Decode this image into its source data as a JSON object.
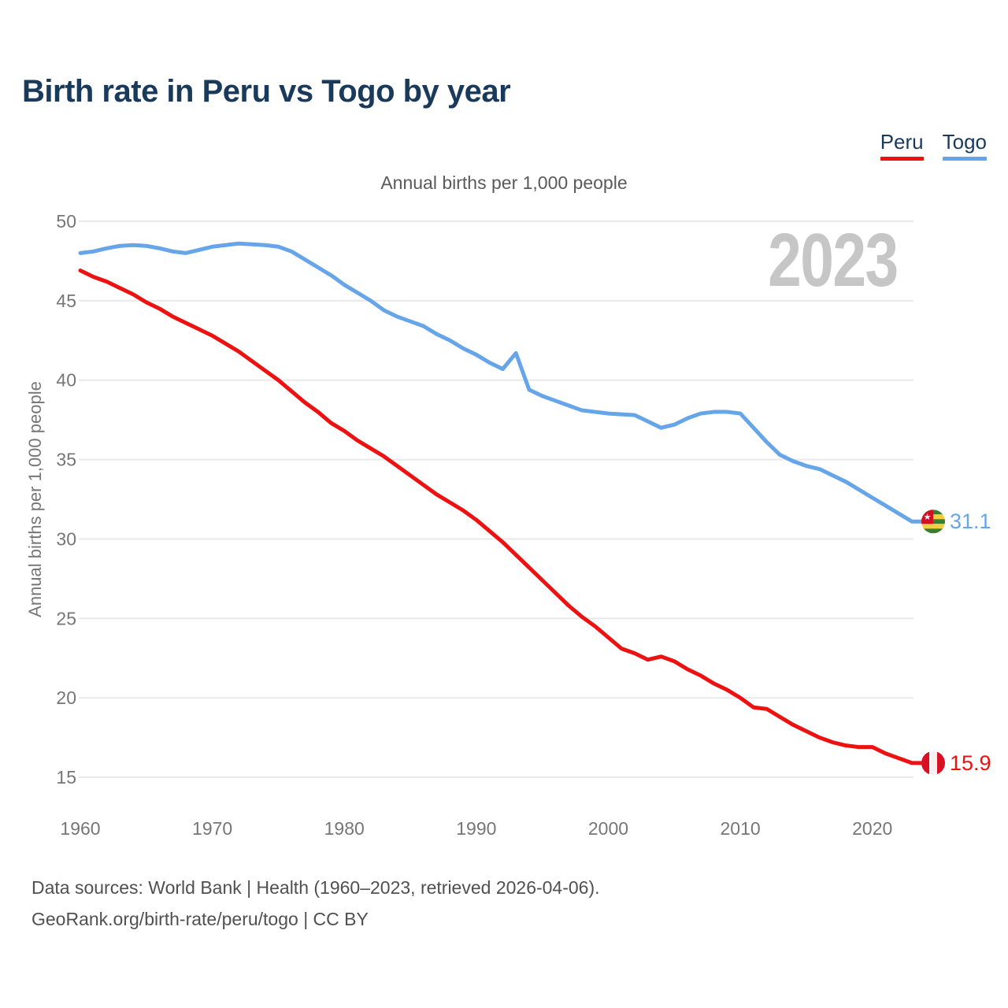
{
  "title": "Birth rate in Peru vs Togo by year",
  "subtitle": "Annual births per 1,000 people",
  "watermark": "2023",
  "legend": {
    "items": [
      {
        "label": "Peru",
        "color": "#ed1212"
      },
      {
        "label": "Togo",
        "color": "#66a5e8"
      }
    ]
  },
  "y_axis": {
    "title": "Annual births per 1,000 people",
    "ticks": [
      15,
      20,
      25,
      30,
      35,
      40,
      45,
      50
    ]
  },
  "x_axis": {
    "ticks": [
      1960,
      1970,
      1980,
      1990,
      2000,
      2010,
      2020
    ]
  },
  "end_labels": {
    "togo": {
      "value": "31.1"
    },
    "peru": {
      "value": "15.9"
    }
  },
  "footer": {
    "line1": "Data sources: World Bank | Health (1960–2023, retrieved 2026-04-06).",
    "line2": "GeoRank.org/birth-rate/peru/togo | CC BY"
  },
  "colors": {
    "title_text": "#1a3a5c",
    "axis_text": "#767676",
    "grid": "#e9e9e9",
    "peru_line": "#ed1212",
    "togo_line": "#66a5e8",
    "watermark": "#c6c6c6",
    "footer_text": "#505050",
    "flag_togo_green": "#3a7d2d",
    "flag_togo_yellow": "#f2ce45",
    "flag_togo_red": "#d21024",
    "flag_star": "#ffffff",
    "flag_peru_red": "#d91023",
    "flag_peru_white": "#f5f1f1"
  },
  "icons": {
    "togo_flag_star": "★"
  },
  "chart_data": {
    "type": "line",
    "title": "Annual births per 1,000 people",
    "xlabel": "",
    "ylabel": "Annual births per 1,000 people",
    "xlim": [
      1960,
      2023
    ],
    "ylim": [
      15,
      50
    ],
    "grid": "horizontal",
    "legend_position": "top-right",
    "x": [
      1960,
      1961,
      1962,
      1963,
      1964,
      1965,
      1966,
      1967,
      1968,
      1969,
      1970,
      1971,
      1972,
      1973,
      1974,
      1975,
      1976,
      1977,
      1978,
      1979,
      1980,
      1981,
      1982,
      1983,
      1984,
      1985,
      1986,
      1987,
      1988,
      1989,
      1990,
      1991,
      1992,
      1993,
      1994,
      1995,
      1996,
      1997,
      1998,
      1999,
      2000,
      2001,
      2002,
      2003,
      2004,
      2005,
      2006,
      2007,
      2008,
      2009,
      2010,
      2011,
      2012,
      2013,
      2014,
      2015,
      2016,
      2017,
      2018,
      2019,
      2020,
      2021,
      2022,
      2023
    ],
    "series": [
      {
        "name": "Peru",
        "color": "#ed1212",
        "end_label": "15.9",
        "values": [
          46.9,
          46.5,
          46.2,
          45.8,
          45.4,
          44.9,
          44.5,
          44.0,
          43.6,
          43.2,
          42.8,
          42.3,
          41.8,
          41.2,
          40.6,
          40.0,
          39.3,
          38.6,
          38.0,
          37.3,
          36.8,
          36.2,
          35.7,
          35.2,
          34.6,
          34.0,
          33.4,
          32.8,
          32.3,
          31.8,
          31.2,
          30.5,
          29.8,
          29.0,
          28.2,
          27.4,
          26.6,
          25.8,
          25.1,
          24.5,
          23.8,
          23.1,
          22.8,
          22.4,
          22.6,
          22.3,
          21.8,
          21.4,
          20.9,
          20.5,
          20.0,
          19.4,
          19.3,
          18.8,
          18.3,
          17.9,
          17.5,
          17.2,
          17.0,
          16.9,
          16.9,
          16.5,
          16.2,
          15.9
        ]
      },
      {
        "name": "Togo",
        "color": "#66a5e8",
        "end_label": "31.1",
        "values": [
          48.0,
          48.1,
          48.3,
          48.45,
          48.5,
          48.45,
          48.3,
          48.1,
          48.0,
          48.2,
          48.4,
          48.5,
          48.6,
          48.55,
          48.5,
          48.4,
          48.1,
          47.6,
          47.1,
          46.6,
          46.0,
          45.5,
          45.0,
          44.4,
          44.0,
          43.7,
          43.4,
          42.9,
          42.5,
          42.0,
          41.6,
          41.1,
          40.7,
          41.7,
          39.4,
          39.0,
          38.7,
          38.4,
          38.1,
          38.0,
          37.9,
          37.85,
          37.8,
          37.4,
          37.0,
          37.2,
          37.6,
          37.9,
          38.0,
          38.0,
          37.9,
          37.0,
          36.1,
          35.3,
          34.9,
          34.6,
          34.4,
          34.0,
          33.6,
          33.1,
          32.6,
          32.1,
          31.6,
          31.1
        ]
      }
    ]
  }
}
